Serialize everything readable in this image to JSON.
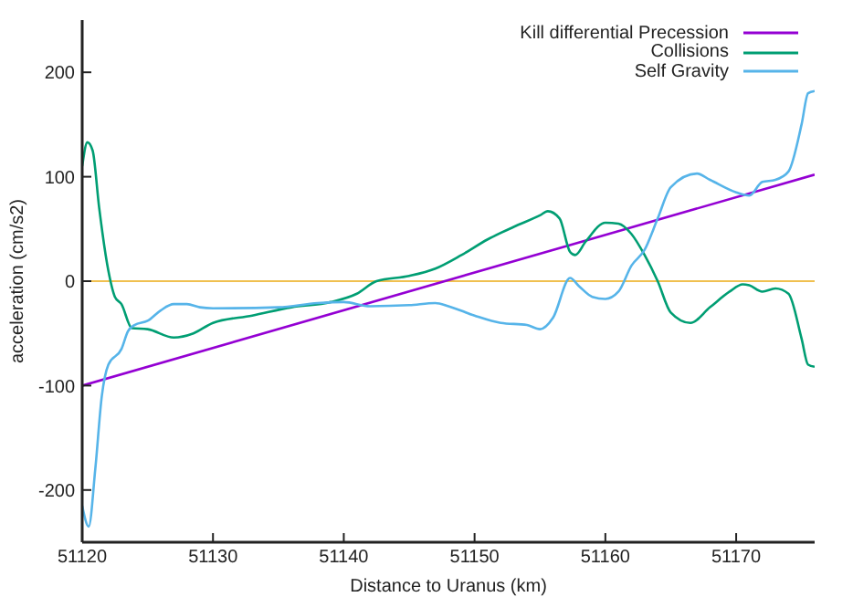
{
  "chart_data": {
    "type": "line",
    "xlabel": "Distance to Uranus (km)",
    "ylabel": "acceleration (cm/s2)",
    "xlim": [
      51120,
      51176
    ],
    "xticks": [
      51120,
      51130,
      51140,
      51150,
      51160,
      51170
    ],
    "ylim": [
      -250,
      250
    ],
    "yticks": [
      -200,
      -100,
      0,
      100,
      200
    ],
    "grid": false,
    "legend": "top right",
    "marker": "none",
    "line_style": "solid",
    "ref_lines": [
      {
        "axis": "y",
        "value": 0,
        "color": "#f0c050"
      }
    ],
    "series": [
      {
        "name": "Kill differential Precession",
        "color": "#9400d3",
        "x": [
          51120,
          51176
        ],
        "values": [
          -100,
          102
        ]
      },
      {
        "name": "Collisions",
        "color": "#009e73",
        "x": [
          51120,
          51120.4,
          51120.8,
          51121.3,
          51122,
          51122.5,
          51123,
          51123.8,
          51125,
          51127,
          51128.5,
          51130,
          51133,
          51136,
          51139,
          51141,
          51142.5,
          51145,
          51147,
          51149,
          51151,
          51153,
          51155,
          51155.6,
          51156.5,
          51157.3,
          51157.7,
          51158.5,
          51160,
          51161,
          51162,
          51163,
          51164,
          51165,
          51166.5,
          51168,
          51169.5,
          51170.5,
          51171,
          51172,
          51173,
          51174,
          51175,
          51175.5,
          51176
        ],
        "values": [
          110,
          133,
          125,
          70,
          10,
          -15,
          -22,
          -45,
          -46,
          -54,
          -50,
          -40,
          -33,
          -25,
          -20,
          -12,
          0,
          5,
          12,
          25,
          40,
          52,
          63,
          67,
          60,
          28,
          25,
          38,
          56,
          55,
          45,
          25,
          0,
          -30,
          -40,
          -25,
          -10,
          -3,
          -4,
          -10,
          -7,
          -12,
          -55,
          -80,
          -82
        ]
      },
      {
        "name": "Self Gravity",
        "color": "#56b4e9",
        "x": [
          51120,
          51120.5,
          51121,
          51121.5,
          51122,
          51123,
          51123.5,
          51124,
          51125,
          51126,
          51127,
          51128,
          51129,
          51130,
          51135,
          51138,
          51140,
          51142,
          51145,
          51147,
          51148,
          51150,
          51152,
          51154,
          51155,
          51156,
          51157.3,
          51158,
          51159,
          51160,
          51161,
          51162,
          51163,
          51164,
          51165,
          51167,
          51168,
          51170,
          51171,
          51172,
          51173,
          51174,
          51175,
          51175.5,
          51176
        ],
        "values": [
          -215,
          -235,
          -180,
          -110,
          -80,
          -65,
          -48,
          -42,
          -38,
          -28,
          -22,
          -22,
          -25,
          -26,
          -25,
          -21,
          -20,
          -24,
          -23,
          -21,
          -24,
          -33,
          -40,
          -42,
          -46,
          -35,
          3,
          -5,
          -15,
          -17,
          -10,
          15,
          30,
          60,
          90,
          103,
          97,
          85,
          82,
          95,
          97,
          105,
          150,
          180,
          182
        ]
      }
    ]
  }
}
